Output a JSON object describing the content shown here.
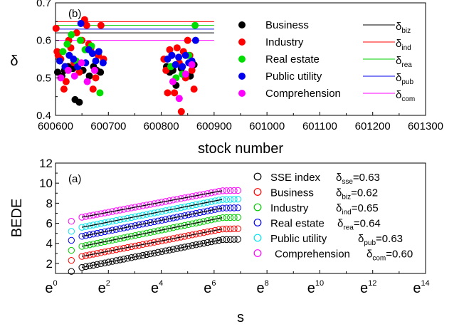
{
  "chart_data": [
    {
      "panel_label": "(b)",
      "type": "scatter",
      "xlabel": "stock number",
      "ylabel": "δ",
      "xlim": [
        600600,
        601300
      ],
      "ylim": [
        0.4,
        0.7
      ],
      "xticks": [
        "600600",
        "600700",
        "600800",
        "600900",
        "601000",
        "601100",
        "601200",
        "601300"
      ],
      "yticks": [
        "0.4",
        "0.5",
        "0.6",
        "0.7"
      ],
      "legend_position": "top-right",
      "series": [
        {
          "name": "Business",
          "color": "#000000",
          "points": [
            [
              600604,
              0.515
            ],
            [
              600612,
              0.505
            ],
            [
              600617,
              0.52
            ],
            [
              600624,
              0.53
            ],
            [
              600633,
              0.525
            ],
            [
              600637,
              0.442
            ],
            [
              600645,
              0.435
            ],
            [
              600652,
              0.52
            ],
            [
              600664,
              0.505
            ],
            [
              600672,
              0.53
            ],
            [
              600678,
              0.52
            ],
            [
              600685,
              0.515
            ],
            [
              600810,
              0.53
            ],
            [
              600816,
              0.515
            ],
            [
              600822,
              0.52
            ],
            [
              600828,
              0.48
            ],
            [
              600838,
              0.525
            ],
            [
              600846,
              0.51
            ],
            [
              600855,
              0.505
            ],
            [
              600862,
              0.535
            ]
          ]
        },
        {
          "name": "Industry",
          "color": "#ff0000",
          "points": [
            [
              600601,
              0.632
            ],
            [
              600603,
              0.57
            ],
            [
              600605,
              0.56
            ],
            [
              600610,
              0.55
            ],
            [
              600616,
              0.47
            ],
            [
              600620,
              0.49
            ],
            [
              600625,
              0.6
            ],
            [
              600629,
              0.58
            ],
            [
              600635,
              0.54
            ],
            [
              600640,
              0.62
            ],
            [
              600645,
              0.515
            ],
            [
              600650,
              0.6
            ],
            [
              600655,
              0.655
            ],
            [
              600659,
              0.64
            ],
            [
              600663,
              0.59
            ],
            [
              600667,
              0.58
            ],
            [
              600671,
              0.47
            ],
            [
              600676,
              0.5
            ],
            [
              600681,
              0.56
            ],
            [
              600686,
              0.64
            ],
            [
              600691,
              0.55
            ],
            [
              600805,
              0.55
            ],
            [
              600809,
              0.52
            ],
            [
              600812,
              0.46
            ],
            [
              600816,
              0.575
            ],
            [
              600820,
              0.56
            ],
            [
              600825,
              0.46
            ],
            [
              600830,
              0.58
            ],
            [
              600834,
              0.54
            ],
            [
              600838,
              0.41
            ],
            [
              600842,
              0.57
            ],
            [
              600846,
              0.5
            ],
            [
              600850,
              0.6
            ],
            [
              600854,
              0.56
            ],
            [
              600858,
              0.52
            ],
            [
              600862,
              0.47
            ]
          ]
        },
        {
          "name": "Real estate",
          "color": "#00dd00",
          "points": [
            [
              600614,
              0.57
            ],
            [
              600622,
              0.59
            ],
            [
              600630,
              0.615
            ],
            [
              600639,
              0.545
            ],
            [
              600647,
              0.6
            ],
            [
              600656,
              0.575
            ],
            [
              600668,
              0.585
            ],
            [
              600684,
              0.46
            ],
            [
              600818,
              0.53
            ],
            [
              600828,
              0.5
            ],
            [
              600840,
              0.51
            ],
            [
              600852,
              0.56
            ],
            [
              600864,
              0.64
            ]
          ]
        },
        {
          "name": "Public utility",
          "color": "#0000ee",
          "points": [
            [
              600608,
              0.545
            ],
            [
              600618,
              0.53
            ],
            [
              600626,
              0.56
            ],
            [
              600634,
              0.55
            ],
            [
              600642,
              0.53
            ],
            [
              600648,
              0.645
            ],
            [
              600657,
              0.54
            ],
            [
              600663,
              0.575
            ],
            [
              600670,
              0.565
            ],
            [
              600676,
              0.545
            ],
            [
              600682,
              0.57
            ],
            [
              600690,
              0.54
            ],
            [
              600812,
              0.55
            ],
            [
              600820,
              0.56
            ],
            [
              600827,
              0.535
            ],
            [
              600833,
              0.555
            ],
            [
              600840,
              0.53
            ],
            [
              600846,
              0.56
            ],
            [
              600852,
              0.54
            ],
            [
              600858,
              0.545
            ],
            [
              600865,
              0.6
            ]
          ]
        },
        {
          "name": "Comprehension",
          "color": "#ff00ff",
          "points": [
            [
              600610,
              0.5
            ],
            [
              600624,
              0.52
            ],
            [
              600636,
              0.505
            ],
            [
              600649,
              0.54
            ],
            [
              600660,
              0.49
            ],
            [
              600674,
              0.52
            ],
            [
              600822,
              0.49
            ],
            [
              600834,
              0.445
            ],
            [
              600846,
              0.51
            ],
            [
              600858,
              0.535
            ]
          ]
        }
      ],
      "reference_lines": [
        {
          "name": "δ_biz",
          "label_main": "δ",
          "label_sub": "biz",
          "color": "#000000",
          "y": 0.62,
          "x_end": 600900
        },
        {
          "name": "δ_ind",
          "label_main": "δ",
          "label_sub": "ind",
          "color": "#ff0000",
          "y": 0.65,
          "x_end": 600900
        },
        {
          "name": "δ_rea",
          "label_main": "δ",
          "label_sub": "rea",
          "color": "#00cc00",
          "y": 0.64,
          "x_end": 600900
        },
        {
          "name": "δ_pub",
          "label_main": "δ",
          "label_sub": "pub",
          "color": "#0000ee",
          "y": 0.63,
          "x_end": 600900
        },
        {
          "name": "δ_com",
          "label_main": "δ",
          "label_sub": "com",
          "color": "#ff00ff",
          "y": 0.6,
          "x_end": 600900
        }
      ]
    },
    {
      "panel_label": "(a)",
      "type": "scatter",
      "xlabel": "s",
      "ylabel": "BEDE",
      "x_scale": "log (natural)",
      "xlim_exponent": [
        0,
        14
      ],
      "ylim": [
        1,
        12
      ],
      "xtick_base": "e",
      "xtick_exponents": [
        "0",
        "2",
        "4",
        "6",
        "8",
        "10",
        "12",
        "14"
      ],
      "yticks": [
        "2",
        "4",
        "6",
        "8",
        "10",
        "12"
      ],
      "legend_position": "right",
      "series": [
        {
          "name": "SSE index",
          "color": "#000000",
          "label_main": "δ",
          "label_sub": "sse",
          "label_value": "=0.63",
          "offset": 1.6,
          "fit_slope": 0.63,
          "fit_end_exponent": 6.3
        },
        {
          "name": "Business",
          "color": "#ff0000",
          "label_main": "δ",
          "label_sub": "biz",
          "label_value": "=0.62",
          "offset": 2.7,
          "fit_slope": 0.62,
          "fit_end_exponent": 6.3
        },
        {
          "name": "Industry",
          "color": "#00cc00",
          "label_main": "δ",
          "label_sub": "ind",
          "label_value": "=0.65",
          "offset": 3.7,
          "fit_slope": 0.65,
          "fit_end_exponent": 6.3
        },
        {
          "name": "Real estate",
          "color": "#0000ee",
          "label_main": "δ",
          "label_sub": "rea",
          "label_value": "=0.64",
          "offset": 4.7,
          "fit_slope": 0.64,
          "fit_end_exponent": 6.3
        },
        {
          "name": "Public utility",
          "color": "#00e5ee",
          "label_main": "δ",
          "label_sub": "pub",
          "label_value": "=0.63",
          "offset": 5.6,
          "fit_slope": 0.63,
          "fit_end_exponent": 6.3
        },
        {
          "name": "Comprehension",
          "color": "#ff00ff",
          "label_main": "δ",
          "label_sub": "com",
          "label_value": "=0.60",
          "offset": 6.6,
          "fit_slope": 0.6,
          "fit_end_exponent": 6.3
        }
      ]
    }
  ]
}
